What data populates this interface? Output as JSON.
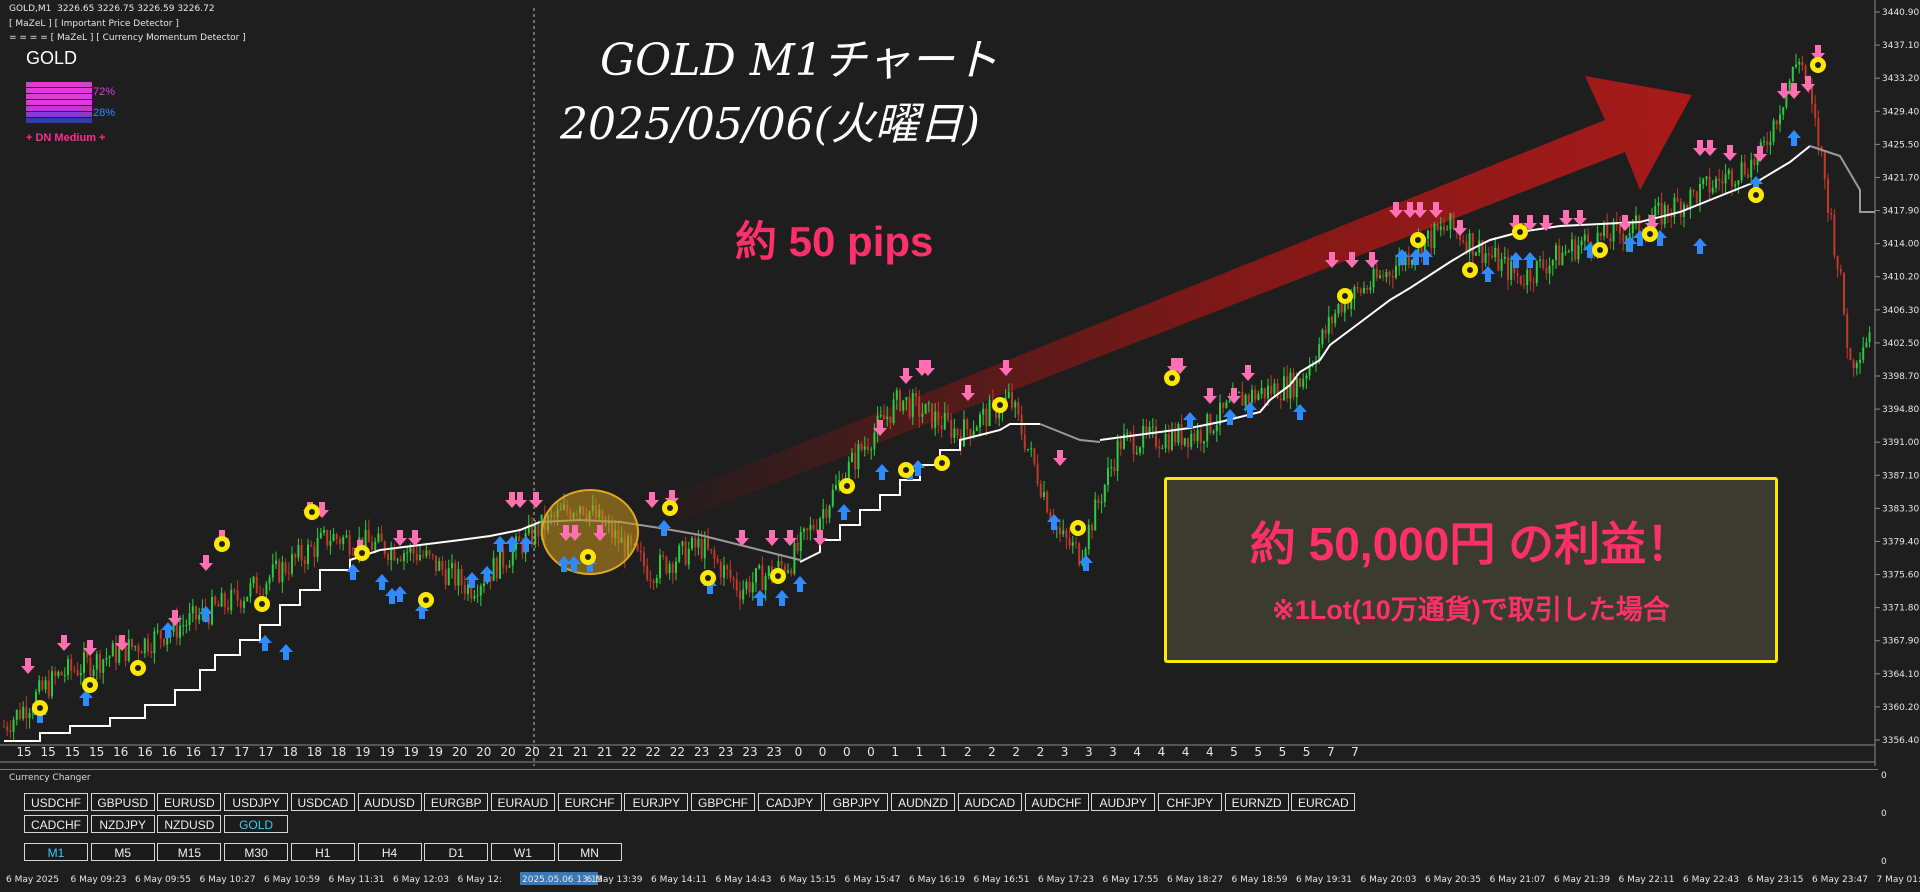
{
  "window": {
    "symbol_tf": "GOLD,M1",
    "ohlc": "3226.65 3226.75 3226.59 3226.72",
    "indicator1": "[ MaZeL ] [ Important Price Detector ]",
    "indicator2": "[ MaZeL ] [ Currency Momentum Detector ]",
    "separator_line": "= = = ="
  },
  "momentum_panel": {
    "symbol": "GOLD",
    "up_pct": "72%",
    "down_pct": "28%",
    "signal": "+ DN Medium +"
  },
  "overlay": {
    "title_line1": "GOLD M1チャート",
    "title_line2": "2025/05/06(火曜日)",
    "pips_text": "約 50 pips",
    "profit_text": "約 50,000円 の利益！",
    "profit_note": "※1Lot(10万通貨)で取引した場合"
  },
  "price_axis": [
    "3440.90",
    "3437.10",
    "3433.20",
    "3429.40",
    "3425.50",
    "3421.70",
    "3417.90",
    "3414.00",
    "3410.20",
    "3406.30",
    "3402.50",
    "3398.70",
    "3394.80",
    "3391.00",
    "3387.10",
    "3383.30",
    "3379.40",
    "3375.60",
    "3371.80",
    "3367.90",
    "3364.10",
    "3360.20",
    "3356.40"
  ],
  "hour_labels": [
    "15",
    "15",
    "15",
    "15",
    "16",
    "16",
    "16",
    "16",
    "17",
    "17",
    "17",
    "18",
    "18",
    "18",
    "19",
    "19",
    "19",
    "19",
    "20",
    "20",
    "20",
    "20",
    "21",
    "21",
    "21",
    "22",
    "22",
    "22",
    "23",
    "23",
    "23",
    "23",
    "0",
    "0",
    "0",
    "0",
    "1",
    "1",
    "1",
    "2",
    "2",
    "2",
    "2",
    "3",
    "3",
    "3",
    "4",
    "4",
    "4",
    "4",
    "5",
    "5",
    "5",
    "5",
    "7",
    "7"
  ],
  "time_axis": [
    "6 May 2025",
    "6 May 09:23",
    "6 May 09:55",
    "6 May 10:27",
    "6 May 10:59",
    "6 May 11:31",
    "6 May 12:03",
    "6 May 12:",
    "2025.05.06 13:15",
    "6 May 13:39",
    "6 May 14:11",
    "6 May 14:43",
    "6 May 15:15",
    "6 May 15:47",
    "6 May 16:19",
    "6 May 16:51",
    "6 May 17:23",
    "6 May 17:55",
    "6 May 18:27",
    "6 May 18:59",
    "6 May 19:31",
    "6 May 20:03",
    "6 May 20:35",
    "6 May 21:07",
    "6 May 21:39",
    "6 May 22:11",
    "6 May 22:43",
    "6 May 23:15",
    "6 May 23:47",
    "7 May 01:0"
  ],
  "currency_changer": {
    "title": "Currency Changer",
    "row1": [
      "USDCHF",
      "GBPUSD",
      "EURUSD",
      "USDJPY",
      "USDCAD",
      "AUDUSD",
      "EURGBP",
      "EURAUD",
      "EURCHF",
      "EURJPY",
      "GBPCHF",
      "CADJPY",
      "GBPJPY",
      "AUDNZD",
      "AUDCAD",
      "AUDCHF",
      "AUDJPY",
      "CHFJPY",
      "EURNZD",
      "EURCAD"
    ],
    "row2": [
      "CADCHF",
      "NZDJPY",
      "NZDUSD",
      "GOLD"
    ],
    "active_symbol": "GOLD",
    "timeframes": [
      "M1",
      "M5",
      "M15",
      "M30",
      "H1",
      "H4",
      "D1",
      "W1",
      "MN"
    ],
    "active_timeframe": "M1"
  },
  "sub_axis": [
    "0",
    "0",
    "0"
  ],
  "colors": {
    "background": "#1e1e1e",
    "bull_candle": "#2ecc40",
    "bear_candle": "#c0392b",
    "sell_arrow": "#ff6fb1",
    "buy_arrow": "#2e8bff",
    "trend_line": "#ffffff",
    "highlight": "#ffe800",
    "profit_text": "#ff2f69"
  }
}
